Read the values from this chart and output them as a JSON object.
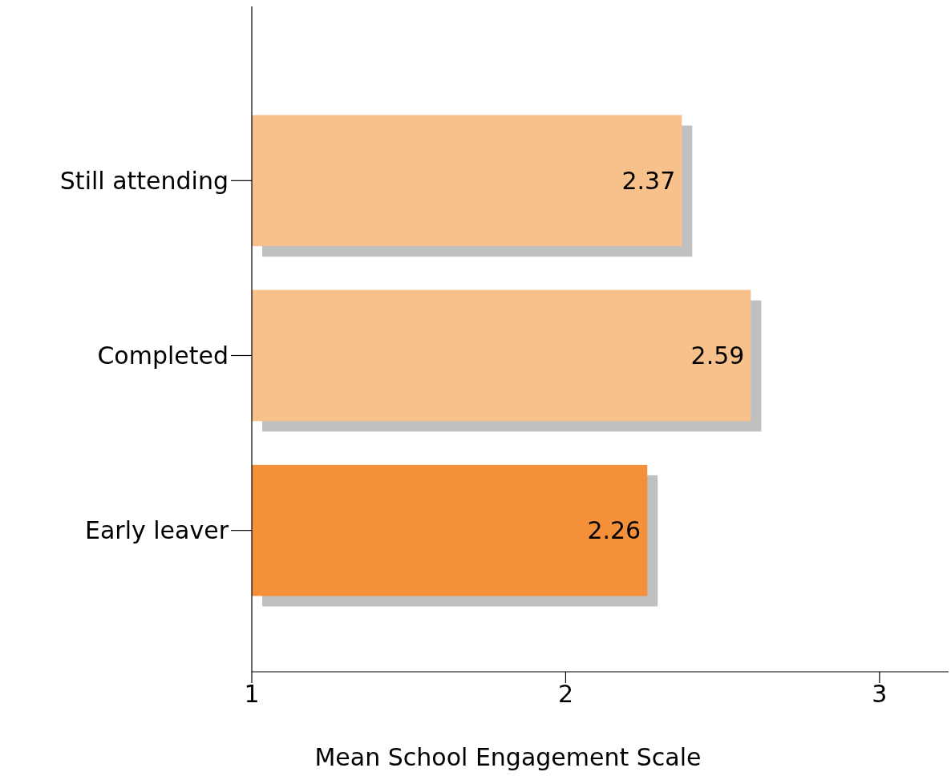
{
  "chart_data": {
    "type": "bar",
    "orientation": "horizontal",
    "xlabel": "Mean School Engagement Scale",
    "categories": [
      "Still attending",
      "Completed",
      "Early leaver"
    ],
    "values": [
      2.37,
      2.59,
      2.26
    ],
    "colors": [
      "#f7c18b",
      "#f7c18b",
      "#f5903a"
    ],
    "xlim": [
      1,
      3.22
    ],
    "xticks": [
      1,
      2,
      3
    ],
    "data_labels": true,
    "grid": false
  }
}
